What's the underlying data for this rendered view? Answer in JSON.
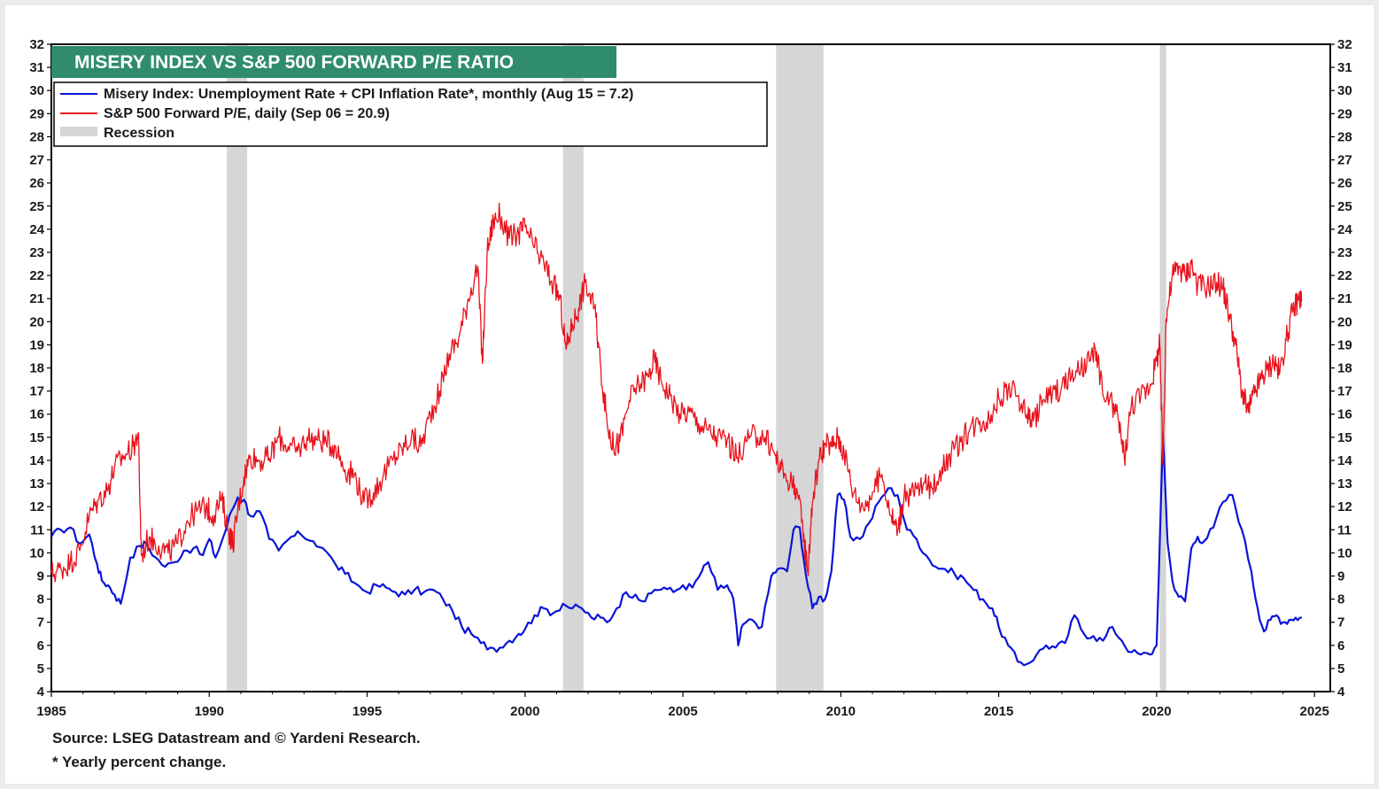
{
  "chart_data": {
    "type": "line",
    "title": "MISERY INDEX VS S&P 500 FORWARD P/E RATIO",
    "xlabel": "",
    "ylabel": "",
    "xlim": [
      1985,
      2025.5
    ],
    "ylim": [
      4,
      32
    ],
    "x_ticks": [
      1985,
      1990,
      1995,
      2000,
      2005,
      2010,
      2015,
      2020,
      2025
    ],
    "y_ticks": [
      4,
      5,
      6,
      7,
      8,
      9,
      10,
      11,
      12,
      13,
      14,
      15,
      16,
      17,
      18,
      19,
      20,
      21,
      22,
      23,
      24,
      25,
      26,
      27,
      28,
      29,
      30,
      31,
      32
    ],
    "legend": {
      "position": "top-left",
      "entries": [
        {
          "label": "Misery Index: Unemployment Rate + CPI Inflation Rate*, monthly (Aug 15 = 7.2)",
          "color": "#0a14d8",
          "kind": "line"
        },
        {
          "label": "S&P 500 Forward P/E, daily (Sep 06 = 20.9)",
          "color": "#e8121b",
          "kind": "line"
        },
        {
          "label": "Recession",
          "color": "#d6d6d6",
          "kind": "box"
        }
      ]
    },
    "recessions": [
      {
        "start": 1990.55,
        "end": 1991.2
      },
      {
        "start": 2001.2,
        "end": 2001.85
      },
      {
        "start": 2007.95,
        "end": 2009.45
      },
      {
        "start": 2020.1,
        "end": 2020.3
      }
    ],
    "series": [
      {
        "name": "Misery Index: Unemployment Rate + CPI Inflation Rate*, monthly (Aug 15 = 7.2)",
        "color": "#0a14d8",
        "x": [
          1985.0,
          1985.3,
          1985.6,
          1985.9,
          1986.2,
          1986.45,
          1986.6,
          1986.8,
          1987.0,
          1987.2,
          1987.5,
          1987.8,
          1988.0,
          1988.3,
          1988.6,
          1988.9,
          1989.2,
          1989.5,
          1989.8,
          1990.0,
          1990.2,
          1990.5,
          1990.7,
          1990.9,
          1991.1,
          1991.3,
          1991.6,
          1991.9,
          1992.2,
          1992.6,
          1992.9,
          1993.3,
          1993.6,
          1994.0,
          1994.3,
          1994.6,
          1995.0,
          1995.3,
          1995.6,
          1995.9,
          1996.2,
          1996.5,
          1996.8,
          1997.1,
          1997.4,
          1997.7,
          1998.0,
          1998.3,
          1998.6,
          1998.9,
          1999.2,
          1999.5,
          1999.8,
          2000.0,
          2000.3,
          2000.6,
          2000.9,
          2001.2,
          2001.5,
          2001.8,
          2002.1,
          2002.4,
          2002.6,
          2002.9,
          2003.2,
          2003.5,
          2003.8,
          2004.1,
          2004.4,
          2004.7,
          2005.0,
          2005.3,
          2005.6,
          2005.8,
          2006.1,
          2006.4,
          2006.6,
          2006.75,
          2006.9,
          2007.2,
          2007.5,
          2007.8,
          2008.0,
          2008.3,
          2008.5,
          2008.7,
          2008.9,
          2009.1,
          2009.3,
          2009.5,
          2009.7,
          2009.9,
          2010.1,
          2010.3,
          2010.6,
          2010.9,
          2011.2,
          2011.5,
          2011.8,
          2012.1,
          2012.4,
          2012.7,
          2013.0,
          2013.3,
          2013.6,
          2013.9,
          2014.2,
          2014.5,
          2014.8,
          2015.0,
          2015.3,
          2015.6,
          2015.9,
          2016.2,
          2016.5,
          2016.8,
          2017.1,
          2017.4,
          2017.7,
          2018.0,
          2018.3,
          2018.6,
          2018.9,
          2019.2,
          2019.5,
          2019.8,
          2020.0,
          2020.2,
          2020.3,
          2020.35,
          2020.5,
          2020.7,
          2020.9,
          2021.1,
          2021.3,
          2021.5,
          2021.8,
          2022.1,
          2022.4,
          2022.7,
          2023.0,
          2023.2,
          2023.4,
          2023.6,
          2023.8,
          2024.0,
          2024.2,
          2024.4,
          2024.6
        ],
        "y": [
          10.7,
          11.0,
          11.1,
          10.4,
          10.8,
          9.5,
          8.8,
          8.6,
          8.2,
          7.8,
          9.8,
          10.3,
          10.4,
          9.8,
          9.4,
          9.6,
          10.1,
          10.2,
          9.9,
          10.6,
          9.8,
          10.9,
          11.8,
          12.4,
          12.3,
          11.6,
          11.8,
          10.6,
          10.1,
          10.7,
          10.8,
          10.5,
          10.2,
          9.5,
          9.1,
          8.7,
          8.3,
          8.6,
          8.5,
          8.3,
          8.2,
          8.4,
          8.3,
          8.4,
          8.0,
          7.5,
          6.8,
          6.5,
          6.1,
          5.9,
          5.9,
          6.2,
          6.5,
          6.7,
          7.3,
          7.6,
          7.4,
          7.8,
          7.6,
          7.6,
          7.2,
          7.2,
          7.0,
          7.6,
          8.3,
          8.2,
          7.9,
          8.4,
          8.5,
          8.3,
          8.6,
          8.5,
          9.2,
          9.6,
          8.4,
          8.6,
          8.0,
          6.0,
          6.9,
          7.1,
          6.8,
          9.0,
          9.3,
          9.2,
          11.0,
          11.1,
          9.0,
          7.6,
          8.1,
          8.0,
          9.2,
          12.5,
          12.3,
          10.7,
          10.6,
          11.3,
          12.2,
          12.8,
          12.5,
          11.0,
          10.6,
          9.9,
          9.4,
          9.3,
          9.1,
          8.9,
          8.4,
          8.0,
          7.6,
          6.8,
          6.0,
          5.3,
          5.2,
          5.6,
          6.0,
          5.9,
          6.1,
          7.3,
          6.5,
          6.4,
          6.2,
          6.8,
          6.2,
          5.7,
          5.6,
          5.6,
          6.0,
          15.1,
          12.0,
          10.4,
          8.8,
          8.1,
          7.9,
          10.2,
          10.7,
          10.5,
          11.1,
          12.2,
          12.5,
          11.0,
          9.2,
          7.6,
          6.6,
          7.1,
          7.3,
          7.0,
          7.1,
          7.2,
          7.2
        ]
      },
      {
        "name": "S&P 500 Forward P/E, daily (Sep 06 = 20.9)",
        "color": "#e8121b",
        "x": [
          1985.0,
          1985.3,
          1985.6,
          1985.9,
          1986.2,
          1986.5,
          1986.8,
          1987.0,
          1987.3,
          1987.6,
          1987.75,
          1987.85,
          1988.1,
          1988.4,
          1988.7,
          1989.0,
          1989.3,
          1989.6,
          1989.9,
          1990.1,
          1990.4,
          1990.6,
          1990.75,
          1990.9,
          1991.1,
          1991.3,
          1991.6,
          1991.9,
          1992.2,
          1992.5,
          1992.8,
          1993.1,
          1993.4,
          1993.7,
          1994.0,
          1994.3,
          1994.6,
          1994.9,
          1995.2,
          1995.5,
          1995.8,
          1996.1,
          1996.4,
          1996.7,
          1997.0,
          1997.3,
          1997.6,
          1997.9,
          1998.2,
          1998.5,
          1998.65,
          1998.8,
          1999.0,
          1999.2,
          1999.5,
          1999.8,
          2000.0,
          2000.3,
          2000.6,
          2000.9,
          2001.1,
          2001.3,
          2001.5,
          2001.7,
          2001.9,
          2002.2,
          2002.4,
          2002.6,
          2002.8,
          2003.0,
          2003.3,
          2003.6,
          2003.9,
          2004.1,
          2004.3,
          2004.6,
          2004.9,
          2005.2,
          2005.5,
          2005.8,
          2006.1,
          2006.4,
          2006.7,
          2007.0,
          2007.3,
          2007.6,
          2007.9,
          2008.1,
          2008.4,
          2008.6,
          2008.8,
          2008.95,
          2009.1,
          2009.3,
          2009.5,
          2009.7,
          2009.9,
          2010.1,
          2010.4,
          2010.7,
          2011.0,
          2011.3,
          2011.6,
          2011.8,
          2012.0,
          2012.3,
          2012.6,
          2012.9,
          2013.2,
          2013.5,
          2013.8,
          2014.1,
          2014.4,
          2014.7,
          2015.0,
          2015.3,
          2015.6,
          2015.9,
          2016.1,
          2016.4,
          2016.7,
          2017.0,
          2017.3,
          2017.6,
          2017.9,
          2018.1,
          2018.3,
          2018.6,
          2018.8,
          2018.98,
          2019.2,
          2019.5,
          2019.8,
          2020.0,
          2020.1,
          2020.2,
          2020.3,
          2020.5,
          2020.7,
          2020.9,
          2021.1,
          2021.3,
          2021.6,
          2021.9,
          2022.1,
          2022.3,
          2022.5,
          2022.7,
          2022.9,
          2023.1,
          2023.3,
          2023.5,
          2023.7,
          2023.9,
          2024.1,
          2024.3,
          2024.5,
          2024.6
        ],
        "y": [
          9.1,
          9.3,
          9.6,
          10.1,
          11.6,
          12.3,
          12.8,
          13.7,
          14.2,
          14.6,
          15.2,
          9.9,
          10.7,
          10.3,
          10.0,
          10.4,
          11.4,
          11.8,
          12.0,
          11.6,
          12.3,
          11.0,
          10.4,
          11.8,
          13.3,
          14.2,
          14.0,
          14.1,
          15.0,
          14.6,
          14.4,
          15.0,
          14.9,
          14.8,
          14.6,
          13.6,
          13.4,
          12.2,
          12.6,
          13.3,
          14.0,
          14.5,
          15.0,
          14.6,
          16.0,
          17.0,
          18.6,
          19.3,
          21.0,
          22.4,
          18.2,
          23.0,
          24.4,
          24.6,
          23.6,
          23.8,
          24.1,
          23.2,
          22.5,
          21.6,
          21.0,
          18.8,
          19.9,
          20.6,
          21.7,
          20.6,
          18.0,
          15.6,
          14.6,
          14.8,
          16.6,
          17.3,
          17.6,
          18.4,
          17.5,
          16.8,
          16.0,
          16.1,
          15.6,
          15.3,
          15.0,
          14.9,
          14.1,
          14.8,
          15.1,
          15.0,
          14.3,
          13.6,
          13.1,
          12.8,
          11.0,
          9.2,
          12.2,
          14.0,
          14.7,
          14.6,
          15.0,
          14.4,
          12.6,
          12.0,
          12.6,
          13.4,
          11.6,
          11.0,
          12.4,
          12.6,
          12.9,
          12.8,
          13.7,
          14.3,
          14.8,
          15.4,
          15.7,
          15.8,
          16.7,
          17.1,
          16.8,
          16.0,
          15.7,
          16.6,
          16.9,
          17.2,
          17.6,
          17.9,
          18.3,
          18.7,
          16.8,
          16.4,
          15.7,
          14.1,
          16.4,
          16.8,
          17.3,
          18.3,
          19.0,
          13.8,
          20.1,
          22.0,
          22.4,
          22.0,
          22.5,
          21.6,
          21.5,
          21.7,
          21.5,
          20.3,
          19.0,
          17.0,
          16.1,
          16.9,
          17.5,
          17.9,
          18.3,
          17.8,
          19.2,
          20.4,
          21.0,
          20.9
        ]
      }
    ],
    "footnotes": [
      "Source: LSEG Datastream and © Yardeni Research.",
      "* Yearly percent change."
    ]
  }
}
